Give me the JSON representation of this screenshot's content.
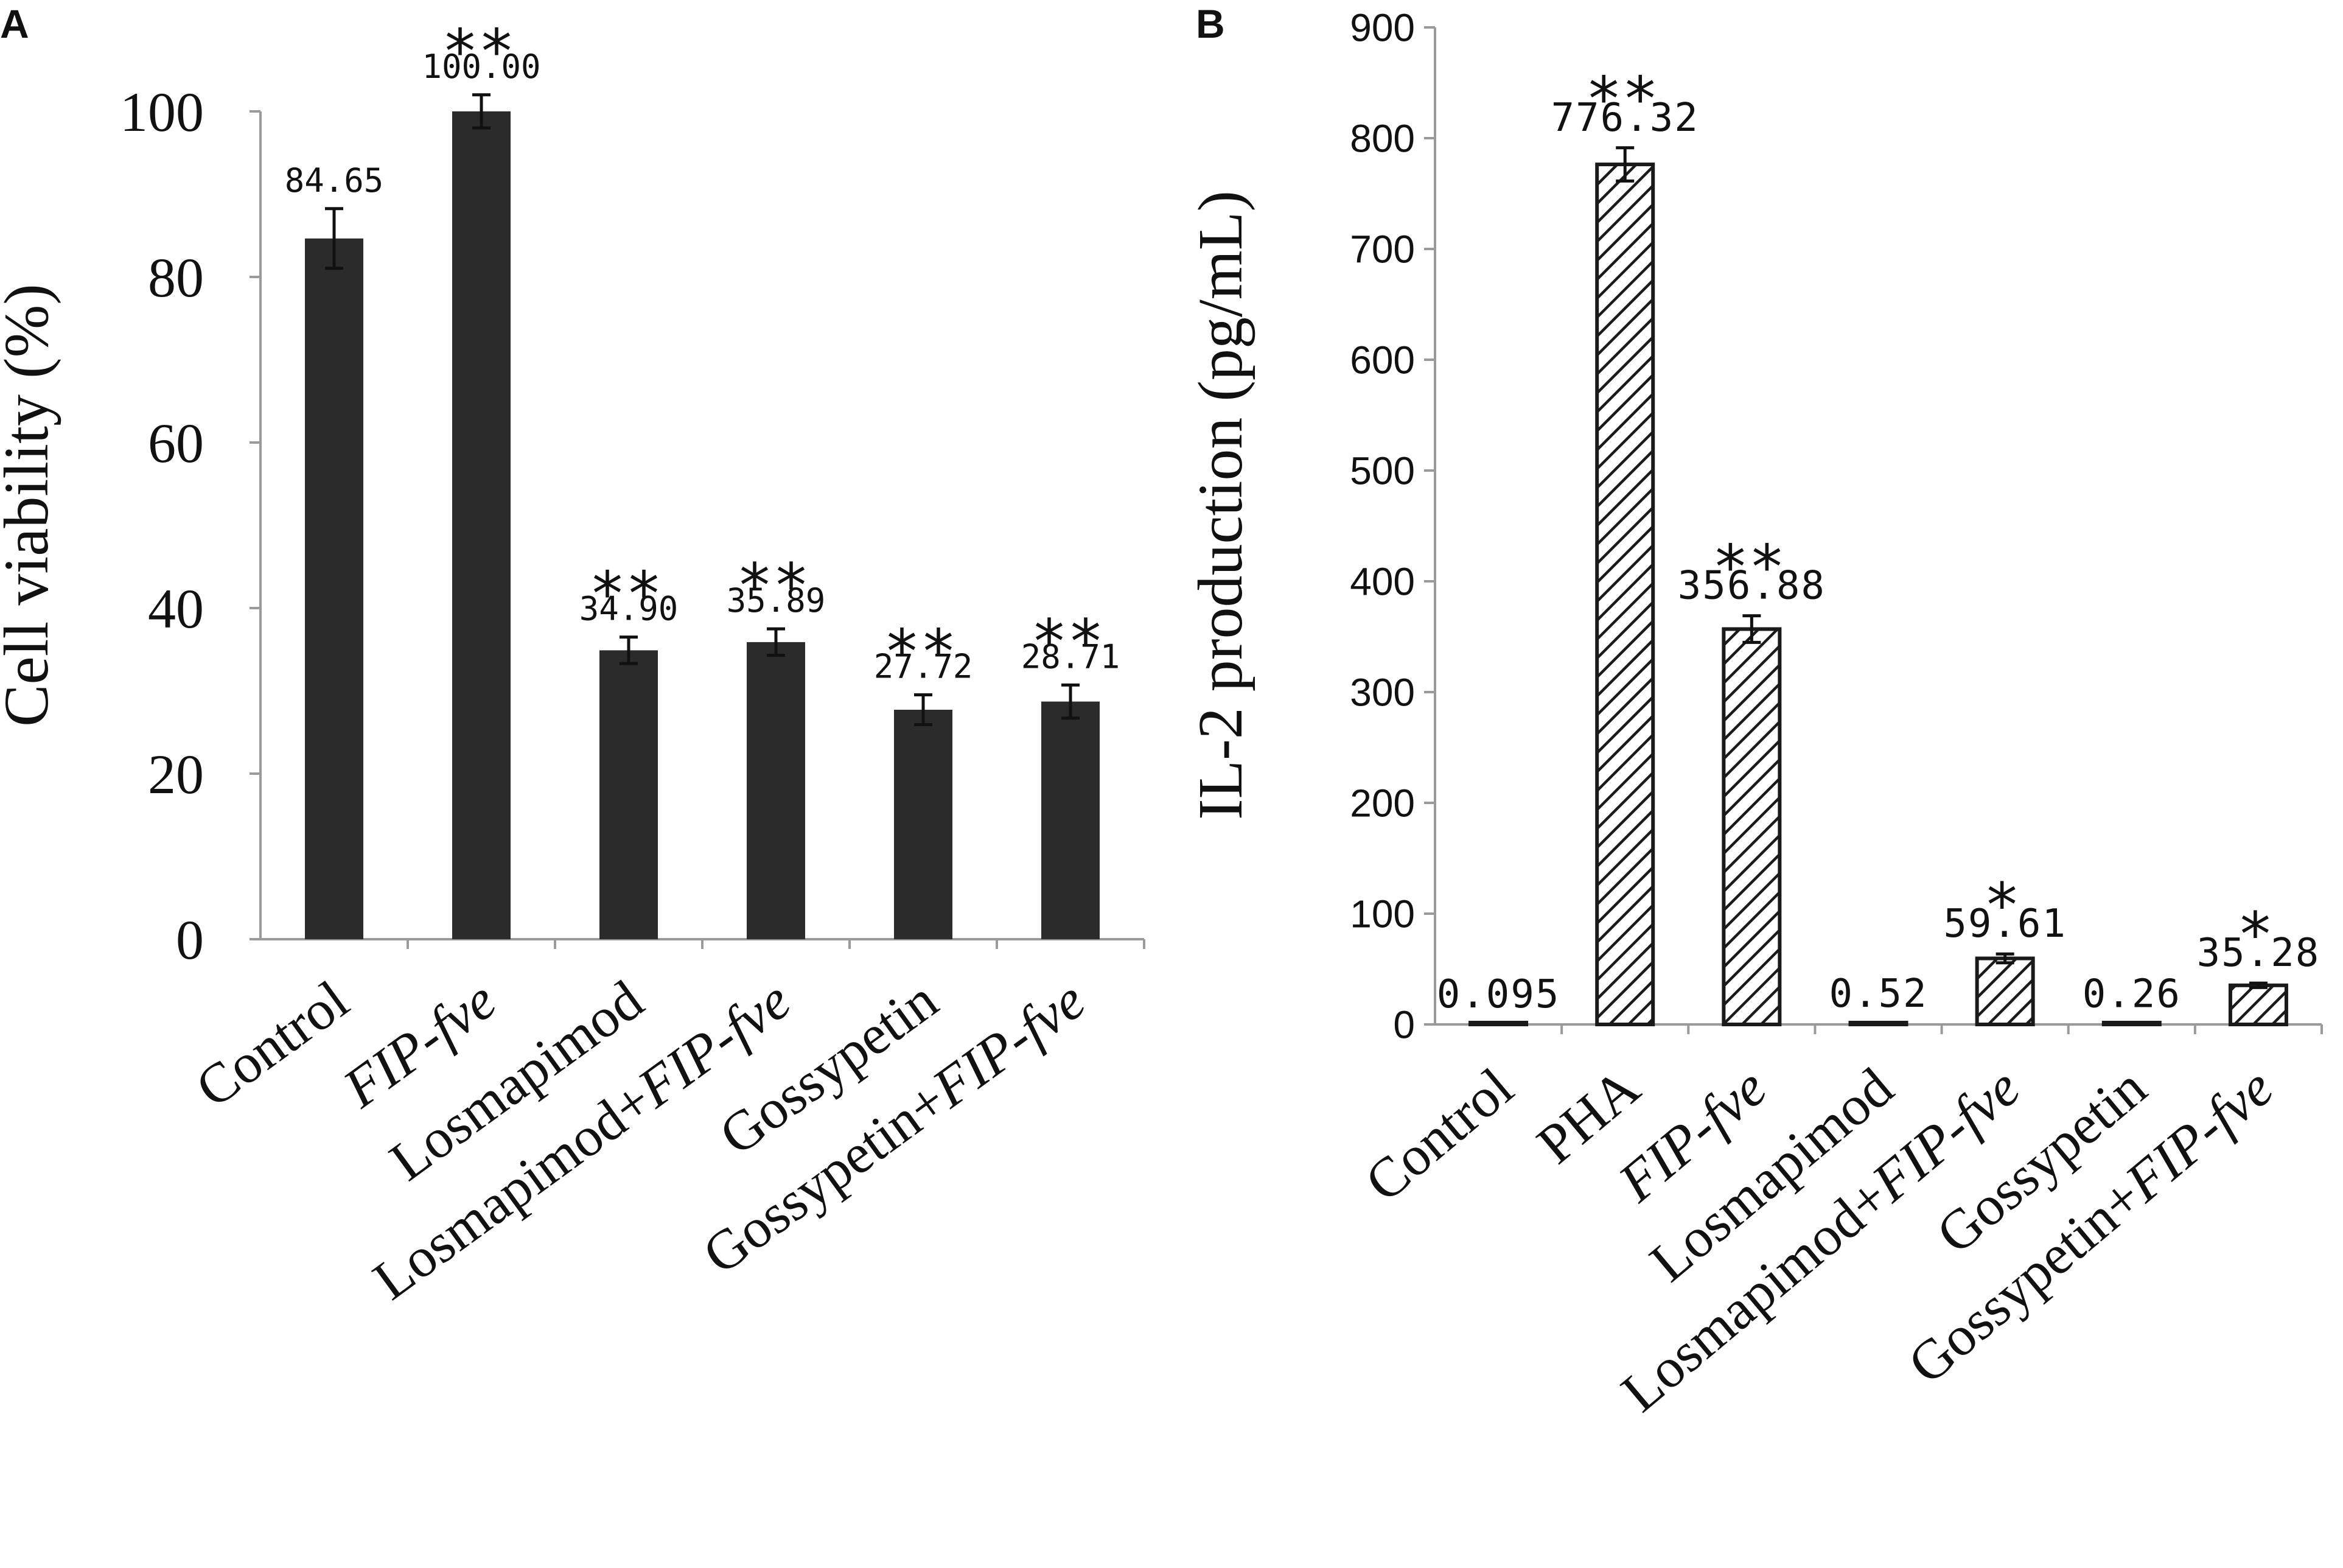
{
  "colors": {
    "bar_fill_a": "#2b2b2b",
    "hatch_fill_b": "#1a1a1a",
    "axis": "#9a9a9a",
    "text": "#111111"
  },
  "chart_data": [
    {
      "panel_label": "A",
      "type": "bar",
      "title": "",
      "xlabel": "",
      "ylabel": "Cell viability (%)",
      "ylim": [
        0,
        100
      ],
      "yticks": [
        "0",
        "20",
        "40",
        "60",
        "80",
        "100"
      ],
      "categories": [
        {
          "parts": [
            {
              "text": "Control",
              "italic": false
            }
          ]
        },
        {
          "parts": [
            {
              "text": "FIP-fve",
              "italic": true
            }
          ]
        },
        {
          "parts": [
            {
              "text": "Losmapimod",
              "italic": false
            }
          ]
        },
        {
          "parts": [
            {
              "text": "Losmapimod+",
              "italic": false
            },
            {
              "text": "FIP-fve",
              "italic": true
            }
          ]
        },
        {
          "parts": [
            {
              "text": "Gossypetin",
              "italic": false
            }
          ]
        },
        {
          "parts": [
            {
              "text": "Gossypetin+",
              "italic": false
            },
            {
              "text": "FIP-fve",
              "italic": true
            }
          ]
        }
      ],
      "values": [
        84.65,
        100.0,
        34.9,
        35.89,
        27.72,
        28.71
      ],
      "errors": [
        3.6,
        2.0,
        1.6,
        1.6,
        1.8,
        2.0
      ],
      "value_labels": [
        "84.65",
        "100.00",
        "34.90",
        "35.89",
        "27.72",
        "28.71"
      ],
      "significance": [
        "",
        "**",
        "**",
        "**",
        "**",
        "**"
      ],
      "style": "solid",
      "grid": false
    },
    {
      "panel_label": "B",
      "type": "bar",
      "title": "",
      "xlabel": "",
      "ylabel": "IL-2 production (pg/mL)",
      "ylim": [
        0,
        900
      ],
      "yticks": [
        "0",
        "100",
        "200",
        "300",
        "400",
        "500",
        "600",
        "700",
        "800",
        "900"
      ],
      "categories": [
        {
          "parts": [
            {
              "text": "Control",
              "italic": false
            }
          ]
        },
        {
          "parts": [
            {
              "text": "PHA",
              "italic": false
            }
          ]
        },
        {
          "parts": [
            {
              "text": "FIP-fve",
              "italic": true
            }
          ]
        },
        {
          "parts": [
            {
              "text": "Losmapimod",
              "italic": false
            }
          ]
        },
        {
          "parts": [
            {
              "text": "Losmapimod+",
              "italic": false
            },
            {
              "text": "FIP-fve",
              "italic": true
            }
          ]
        },
        {
          "parts": [
            {
              "text": "Gossypetin",
              "italic": false
            }
          ]
        },
        {
          "parts": [
            {
              "text": "Gossypetin+",
              "italic": false
            },
            {
              "text": "FIP-fve",
              "italic": true
            }
          ]
        }
      ],
      "values": [
        0.095,
        776.32,
        356.88,
        0.52,
        59.61,
        0.26,
        35.28
      ],
      "errors": [
        0,
        15,
        12,
        0,
        4,
        0,
        2
      ],
      "value_labels": [
        "0.095",
        "776.32",
        "356.88",
        "0.52",
        "59.61",
        "0.26",
        "35.28"
      ],
      "significance": [
        "",
        "**",
        "**",
        "",
        "*",
        "",
        "*"
      ],
      "style": "hatched",
      "grid": false
    }
  ]
}
